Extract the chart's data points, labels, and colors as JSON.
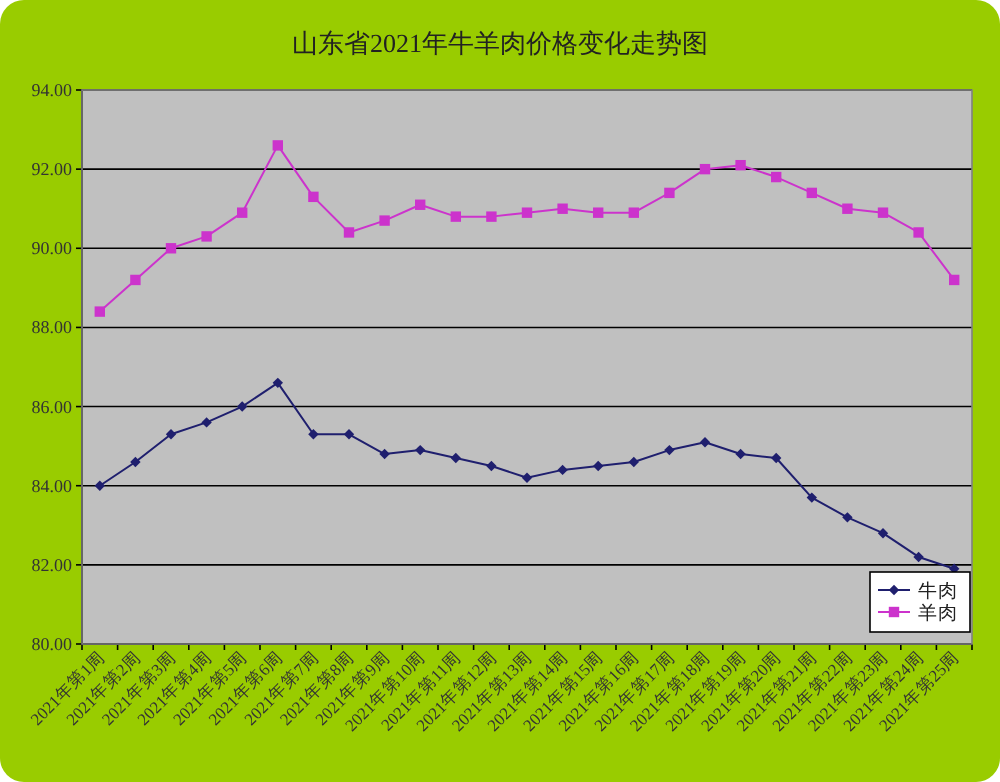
{
  "chart_data": {
    "type": "line",
    "title": "山东省2021年牛羊肉价格变化走势图",
    "categories": [
      "2021年第1周",
      "2021年第2周",
      "2021年第3周",
      "2021年第4周",
      "2021年第5周",
      "2021年第6周",
      "2021年第7周",
      "2021年第8周",
      "2021年第9周",
      "2021年第10周",
      "2021年第11周",
      "2021年第12周",
      "2021年第13周",
      "2021年第14周",
      "2021年第15周",
      "2021年第16周",
      "2021年第17周",
      "2021年第18周",
      "2021年第19周",
      "2021年第20周",
      "2021年第21周",
      "2021年第22周",
      "2021年第23周",
      "2021年第24周",
      "2021年第25周"
    ],
    "series": [
      {
        "name": "牛肉",
        "color": "#1f1f6e",
        "marker": "diamond",
        "values": [
          84.0,
          84.6,
          85.3,
          85.6,
          86.0,
          86.6,
          85.3,
          85.3,
          84.8,
          84.9,
          84.7,
          84.5,
          84.2,
          84.4,
          84.5,
          84.6,
          84.9,
          85.1,
          84.8,
          84.7,
          83.7,
          83.2,
          82.8,
          82.2,
          81.9
        ]
      },
      {
        "name": "羊肉",
        "color": "#cc33cc",
        "marker": "square",
        "values": [
          88.4,
          89.2,
          90.0,
          90.3,
          90.9,
          92.6,
          91.3,
          90.4,
          90.7,
          91.1,
          90.8,
          90.8,
          90.9,
          91.0,
          90.9,
          90.9,
          91.4,
          92.0,
          92.1,
          91.8,
          91.4,
          91.0,
          90.9,
          90.4,
          89.2
        ]
      }
    ],
    "ylim": [
      80,
      94
    ],
    "yticks": [
      {
        "value": 80,
        "label": "80.00"
      },
      {
        "value": 82,
        "label": "82.00"
      },
      {
        "value": 84,
        "label": "84.00"
      },
      {
        "value": 86,
        "label": "86.00"
      },
      {
        "value": 88,
        "label": "88.00"
      },
      {
        "value": 90,
        "label": "90.00"
      },
      {
        "value": 92,
        "label": "92.00"
      },
      {
        "value": 94,
        "label": "94.00"
      }
    ],
    "grid": "y",
    "legend": "bottom right"
  }
}
